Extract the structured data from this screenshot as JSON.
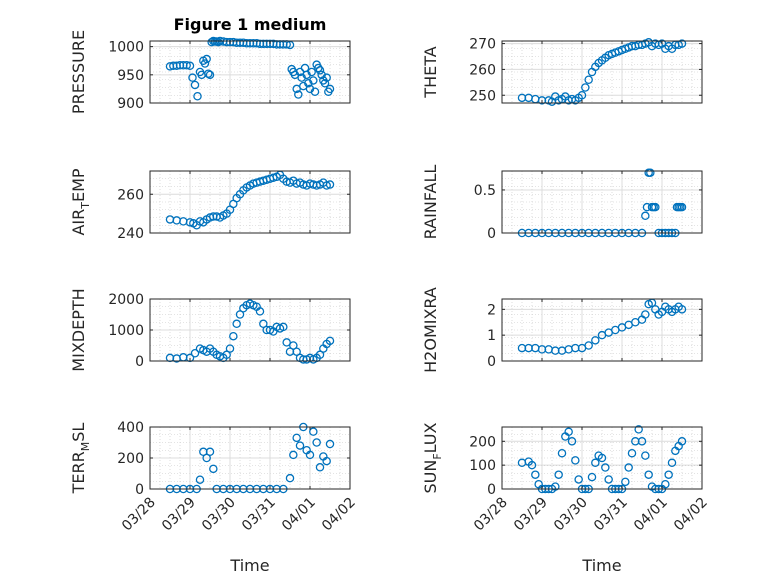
{
  "figure": {
    "title": "Figure 1 medium",
    "marker_color": "#0072BD",
    "background": "#ffffff"
  },
  "chart_data": [
    {
      "type": "scatter",
      "ylabel": "PRESSURE",
      "ylim": [
        900,
        1010
      ],
      "yticks": [
        900,
        950,
        1000
      ],
      "ytick_labels": [
        "900",
        "950",
        "1000"
      ],
      "xlim": [
        "03/28",
        "04/02"
      ],
      "xticks": [
        "03/28",
        "03/29",
        "03/30",
        "03/31",
        "04/01",
        "04/02"
      ],
      "xtick_labels": [],
      "xlabel": "",
      "grid": true,
      "x": [
        "03/28 12:00",
        "03/28 14:00",
        "03/28 16:00",
        "03/28 18:00",
        "03/28 20:00",
        "03/28 22:00",
        "03/29 00:00",
        "03/29 01:30",
        "03/29 03:00",
        "03/29 04:30",
        "03/29 06:00",
        "03/29 07:00",
        "03/29 08:00",
        "03/29 09:00",
        "03/29 10:00",
        "03/29 11:00",
        "03/29 12:00",
        "03/29 13:00",
        "03/29 14:00",
        "03/29 15:00",
        "03/29 16:00",
        "03/29 17:00",
        "03/29 18:00",
        "03/29 20:00",
        "03/29 22:00",
        "03/30 00:00",
        "03/30 02:00",
        "03/30 04:00",
        "03/30 06:00",
        "03/30 08:00",
        "03/30 10:00",
        "03/30 12:00",
        "03/30 14:00",
        "03/30 16:00",
        "03/30 18:00",
        "03/30 20:00",
        "03/30 22:00",
        "03/31 00:00",
        "03/31 02:00",
        "03/31 04:00",
        "03/31 06:00",
        "03/31 08:00",
        "03/31 10:00",
        "03/31 12:00",
        "03/31 13:00",
        "03/31 14:00",
        "03/31 15:00",
        "03/31 16:00",
        "03/31 17:00",
        "03/31 18:00",
        "03/31 19:00",
        "03/31 20:00",
        "03/31 21:00",
        "03/31 22:00",
        "03/31 23:00",
        "04/01 00:00",
        "04/01 01:00",
        "04/01 02:00",
        "04/01 03:00",
        "04/01 04:00",
        "04/01 05:00",
        "04/01 06:00",
        "04/01 07:00",
        "04/01 08:00",
        "04/01 09:00",
        "04/01 10:00",
        "04/01 11:00",
        "04/01 12:00"
      ],
      "y": [
        965,
        966,
        966,
        967,
        967,
        967,
        966,
        945,
        932,
        912,
        955,
        950,
        975,
        970,
        978,
        952,
        950,
        1008,
        1010,
        1009,
        1009,
        1008,
        1010,
        1009,
        1008,
        1008,
        1008,
        1007,
        1007,
        1007,
        1006,
        1006,
        1006,
        1006,
        1005,
        1005,
        1005,
        1005,
        1005,
        1004,
        1004,
        1004,
        1004,
        1003,
        960,
        955,
        950,
        925,
        915,
        955,
        945,
        930,
        962,
        950,
        935,
        925,
        955,
        940,
        920,
        968,
        962,
        958,
        950,
        940,
        935,
        945,
        920,
        925
      ]
    },
    {
      "type": "scatter",
      "ylabel": "THETA",
      "ylim": [
        247,
        271
      ],
      "yticks": [
        250,
        260,
        270
      ],
      "ytick_labels": [
        "250",
        "260",
        "270"
      ],
      "xlim": [
        "03/28",
        "04/02"
      ],
      "xticks": [
        "03/28",
        "03/29",
        "03/30",
        "03/31",
        "04/01",
        "04/02"
      ],
      "xtick_labels": [],
      "xlabel": "",
      "grid": true,
      "x": [
        "03/28 12:00",
        "03/28 16:00",
        "03/28 20:00",
        "03/29 00:00",
        "03/29 04:00",
        "03/29 06:00",
        "03/29 08:00",
        "03/29 10:00",
        "03/29 12:00",
        "03/29 14:00",
        "03/29 16:00",
        "03/29 18:00",
        "03/29 20:00",
        "03/29 22:00",
        "03/30 00:00",
        "03/30 02:00",
        "03/30 04:00",
        "03/30 06:00",
        "03/30 08:00",
        "03/30 10:00",
        "03/30 12:00",
        "03/30 14:00",
        "03/30 16:00",
        "03/30 18:00",
        "03/30 20:00",
        "03/30 22:00",
        "03/31 00:00",
        "03/31 02:00",
        "03/31 04:00",
        "03/31 06:00",
        "03/31 08:00",
        "03/31 10:00",
        "03/31 12:00",
        "03/31 14:00",
        "03/31 16:00",
        "03/31 18:00",
        "03/31 20:00",
        "03/31 22:00",
        "04/01 00:00",
        "04/01 02:00",
        "04/01 04:00",
        "04/01 06:00",
        "04/01 08:00",
        "04/01 10:00",
        "04/01 12:00"
      ],
      "y": [
        249,
        249,
        248.5,
        248,
        248,
        247.5,
        249.5,
        248,
        248.5,
        249.5,
        248,
        248.5,
        248,
        249,
        250,
        253,
        256,
        259,
        261,
        262.5,
        263.5,
        264.5,
        265.5,
        266,
        266.5,
        267,
        267.5,
        268,
        268.5,
        269,
        269,
        269.5,
        269.5,
        270,
        270.5,
        269,
        270,
        269.5,
        270,
        268,
        269,
        268,
        269.5,
        269.5,
        270
      ]
    },
    {
      "type": "scatter",
      "ylabel": "AIR_TEMP",
      "ylabel_main": "AIR",
      "ylabel_sub": "T",
      "ylabel_tail": "EMP",
      "ylim": [
        240,
        272
      ],
      "yticks": [
        240,
        260
      ],
      "ytick_labels": [
        "240",
        "260"
      ],
      "xlim": [
        "03/28",
        "04/02"
      ],
      "xticks": [
        "03/28",
        "03/29",
        "03/30",
        "03/31",
        "04/01",
        "04/02"
      ],
      "xtick_labels": [],
      "xlabel": "",
      "grid": true,
      "x": [
        "03/28 12:00",
        "03/28 16:00",
        "03/28 20:00",
        "03/29 00:00",
        "03/29 02:00",
        "03/29 04:00",
        "03/29 06:00",
        "03/29 08:00",
        "03/29 10:00",
        "03/29 12:00",
        "03/29 14:00",
        "03/29 16:00",
        "03/29 18:00",
        "03/29 20:00",
        "03/29 22:00",
        "03/30 00:00",
        "03/30 02:00",
        "03/30 04:00",
        "03/30 06:00",
        "03/30 08:00",
        "03/30 10:00",
        "03/30 12:00",
        "03/30 14:00",
        "03/30 16:00",
        "03/30 18:00",
        "03/30 20:00",
        "03/30 22:00",
        "03/31 00:00",
        "03/31 02:00",
        "03/31 04:00",
        "03/31 06:00",
        "03/31 08:00",
        "03/31 10:00",
        "03/31 12:00",
        "03/31 14:00",
        "03/31 16:00",
        "03/31 18:00",
        "03/31 20:00",
        "03/31 22:00",
        "04/01 00:00",
        "04/01 02:00",
        "04/01 04:00",
        "04/01 06:00",
        "04/01 08:00",
        "04/01 10:00",
        "04/01 12:00"
      ],
      "y": [
        247,
        246.5,
        246,
        245.5,
        245,
        244,
        246,
        245.5,
        247,
        248,
        248.5,
        248.5,
        248,
        249,
        250,
        252,
        255,
        258,
        260,
        262,
        263.5,
        264.5,
        265.5,
        266,
        266.5,
        267,
        267.5,
        268,
        268.5,
        269,
        270,
        268,
        266.5,
        266,
        267,
        265.5,
        266,
        265,
        264.5,
        265.5,
        265,
        264.5,
        265,
        266,
        264.5,
        265
      ]
    },
    {
      "type": "scatter",
      "ylabel": "RAINFALL",
      "ylim": [
        0,
        0.72
      ],
      "yticks": [
        0,
        0.5
      ],
      "ytick_labels": [
        "0",
        "0.5"
      ],
      "xlim": [
        "03/28",
        "04/02"
      ],
      "xticks": [
        "03/28",
        "03/29",
        "03/30",
        "03/31",
        "04/01",
        "04/02"
      ],
      "xtick_labels": [],
      "xlabel": "",
      "grid": true,
      "x": [
        "03/28 12:00",
        "03/28 16:00",
        "03/28 20:00",
        "03/29 00:00",
        "03/29 04:00",
        "03/29 08:00",
        "03/29 12:00",
        "03/29 16:00",
        "03/29 20:00",
        "03/30 00:00",
        "03/30 04:00",
        "03/30 08:00",
        "03/30 12:00",
        "03/30 16:00",
        "03/30 20:00",
        "03/31 00:00",
        "03/31 04:00",
        "03/31 08:00",
        "03/31 12:00",
        "03/31 14:00",
        "03/31 15:00",
        "03/31 16:00",
        "03/31 17:00",
        "03/31 18:00",
        "03/31 19:00",
        "03/31 20:00",
        "03/31 22:00",
        "04/01 00:00",
        "04/01 02:00",
        "04/01 04:00",
        "04/01 06:00",
        "04/01 08:00",
        "04/01 09:00",
        "04/01 10:00",
        "04/01 11:00",
        "04/01 12:00"
      ],
      "y": [
        0,
        0,
        0,
        0,
        0,
        0,
        0,
        0,
        0,
        0,
        0,
        0,
        0,
        0,
        0,
        0,
        0,
        0,
        0,
        0.2,
        0.3,
        0.7,
        0.7,
        0.3,
        0.3,
        0.3,
        0,
        0,
        0,
        0,
        0,
        0,
        0.3,
        0.3,
        0.3,
        0.3
      ]
    },
    {
      "type": "scatter",
      "ylabel": "MIXDEPTH",
      "ylim": [
        0,
        2000
      ],
      "yticks": [
        0,
        1000,
        2000
      ],
      "ytick_labels": [
        "0",
        "1000",
        "2000"
      ],
      "xlim": [
        "03/28",
        "04/02"
      ],
      "xticks": [
        "03/28",
        "03/29",
        "03/30",
        "03/31",
        "04/01",
        "04/02"
      ],
      "xtick_labels": [],
      "xlabel": "",
      "grid": true,
      "x": [
        "03/28 12:00",
        "03/28 16:00",
        "03/28 20:00",
        "03/29 00:00",
        "03/29 03:00",
        "03/29 06:00",
        "03/29 08:00",
        "03/29 10:00",
        "03/29 12:00",
        "03/29 14:00",
        "03/29 16:00",
        "03/29 18:00",
        "03/29 20:00",
        "03/29 22:00",
        "03/30 00:00",
        "03/30 02:00",
        "03/30 04:00",
        "03/30 06:00",
        "03/30 08:00",
        "03/30 10:00",
        "03/30 12:00",
        "03/30 14:00",
        "03/30 16:00",
        "03/30 18:00",
        "03/30 20:00",
        "03/30 22:00",
        "03/31 00:00",
        "03/31 02:00",
        "03/31 04:00",
        "03/31 06:00",
        "03/31 08:00",
        "03/31 10:00",
        "03/31 12:00",
        "03/31 14:00",
        "03/31 16:00",
        "03/31 18:00",
        "03/31 20:00",
        "03/31 22:00",
        "04/01 00:00",
        "04/01 02:00",
        "04/01 04:00",
        "04/01 06:00",
        "04/01 08:00",
        "04/01 10:00",
        "04/01 12:00"
      ],
      "y": [
        100,
        80,
        120,
        100,
        250,
        400,
        350,
        300,
        400,
        300,
        200,
        150,
        100,
        200,
        400,
        800,
        1200,
        1500,
        1700,
        1800,
        1850,
        1800,
        1750,
        1600,
        1200,
        1000,
        1000,
        950,
        1100,
        1050,
        1100,
        600,
        300,
        500,
        300,
        100,
        50,
        50,
        100,
        50,
        100,
        200,
        400,
        550,
        650
      ]
    },
    {
      "type": "scatter",
      "ylabel": "H2OMIXRA",
      "ylim": [
        0,
        2.4
      ],
      "yticks": [
        0,
        1,
        2
      ],
      "ytick_labels": [
        "0",
        "1",
        "2"
      ],
      "xlim": [
        "03/28",
        "04/02"
      ],
      "xticks": [
        "03/28",
        "03/29",
        "03/30",
        "03/31",
        "04/01",
        "04/02"
      ],
      "xtick_labels": [],
      "xlabel": "",
      "grid": true,
      "x": [
        "03/28 12:00",
        "03/28 16:00",
        "03/28 20:00",
        "03/29 00:00",
        "03/29 04:00",
        "03/29 08:00",
        "03/29 12:00",
        "03/29 16:00",
        "03/29 20:00",
        "03/30 00:00",
        "03/30 04:00",
        "03/30 08:00",
        "03/30 12:00",
        "03/30 16:00",
        "03/30 20:00",
        "03/31 00:00",
        "03/31 04:00",
        "03/31 08:00",
        "03/31 12:00",
        "03/31 14:00",
        "03/31 16:00",
        "03/31 18:00",
        "03/31 20:00",
        "03/31 22:00",
        "04/01 00:00",
        "04/01 02:00",
        "04/01 04:00",
        "04/01 06:00",
        "04/01 08:00",
        "04/01 10:00",
        "04/01 12:00"
      ],
      "y": [
        0.5,
        0.5,
        0.5,
        0.45,
        0.45,
        0.4,
        0.4,
        0.45,
        0.5,
        0.5,
        0.6,
        0.8,
        1.0,
        1.1,
        1.2,
        1.3,
        1.4,
        1.5,
        1.6,
        1.8,
        2.2,
        2.25,
        2.0,
        1.8,
        1.9,
        2.1,
        2.0,
        1.9,
        2.0,
        2.1,
        2.0
      ]
    },
    {
      "type": "scatter",
      "ylabel": "TERR_MSL",
      "ylabel_main": "TERR",
      "ylabel_sub": "M",
      "ylabel_tail": "SL",
      "ylim": [
        0,
        400
      ],
      "yticks": [
        0,
        200,
        400
      ],
      "ytick_labels": [
        "0",
        "200",
        "400"
      ],
      "xlim": [
        "03/28",
        "04/02"
      ],
      "xticks": [
        "03/28",
        "03/29",
        "03/30",
        "03/31",
        "04/01",
        "04/02"
      ],
      "xtick_labels": [
        "03/28",
        "03/29",
        "03/30",
        "03/31",
        "04/01",
        "04/02"
      ],
      "xlabel": "Time",
      "grid": true,
      "x": [
        "03/28 12:00",
        "03/28 16:00",
        "03/28 20:00",
        "03/29 00:00",
        "03/29 04:00",
        "03/29 06:00",
        "03/29 08:00",
        "03/29 10:00",
        "03/29 12:00",
        "03/29 14:00",
        "03/29 16:00",
        "03/29 20:00",
        "03/30 00:00",
        "03/30 04:00",
        "03/30 08:00",
        "03/30 12:00",
        "03/30 16:00",
        "03/30 20:00",
        "03/31 00:00",
        "03/31 04:00",
        "03/31 08:00",
        "03/31 12:00",
        "03/31 14:00",
        "03/31 16:00",
        "03/31 18:00",
        "03/31 20:00",
        "03/31 22:00",
        "04/01 00:00",
        "04/01 02:00",
        "04/01 04:00",
        "04/01 06:00",
        "04/01 08:00",
        "04/01 10:00",
        "04/01 12:00"
      ],
      "y": [
        0,
        0,
        0,
        0,
        0,
        60,
        240,
        200,
        240,
        130,
        0,
        0,
        0,
        0,
        0,
        0,
        0,
        0,
        0,
        0,
        0,
        70,
        220,
        330,
        280,
        400,
        250,
        220,
        370,
        300,
        140,
        210,
        180,
        290
      ]
    },
    {
      "type": "scatter",
      "ylabel": "SUN_FLUX",
      "ylabel_main": "SUN",
      "ylabel_sub": "F",
      "ylabel_tail": "LUX",
      "ylim": [
        0,
        260
      ],
      "yticks": [
        0,
        100,
        200
      ],
      "ytick_labels": [
        "0",
        "100",
        "200"
      ],
      "xlim": [
        "03/28",
        "04/02"
      ],
      "xticks": [
        "03/28",
        "03/29",
        "03/30",
        "03/31",
        "04/01",
        "04/02"
      ],
      "xtick_labels": [
        "03/28",
        "03/29",
        "03/30",
        "03/31",
        "04/01",
        "04/02"
      ],
      "xlabel": "Time",
      "grid": true,
      "x": [
        "03/28 12:00",
        "03/28 16:00",
        "03/28 18:00",
        "03/28 20:00",
        "03/28 22:00",
        "03/29 00:00",
        "03/29 02:00",
        "03/29 04:00",
        "03/29 06:00",
        "03/29 08:00",
        "03/29 10:00",
        "03/29 12:00",
        "03/29 14:00",
        "03/29 16:00",
        "03/29 18:00",
        "03/29 20:00",
        "03/29 22:00",
        "03/30 00:00",
        "03/30 02:00",
        "03/30 04:00",
        "03/30 06:00",
        "03/30 08:00",
        "03/30 10:00",
        "03/30 12:00",
        "03/30 14:00",
        "03/30 16:00",
        "03/30 18:00",
        "03/30 20:00",
        "03/30 22:00",
        "03/31 00:00",
        "03/31 02:00",
        "03/31 04:00",
        "03/31 06:00",
        "03/31 08:00",
        "03/31 10:00",
        "03/31 12:00",
        "03/31 14:00",
        "03/31 16:00",
        "03/31 18:00",
        "03/31 20:00",
        "03/31 22:00",
        "04/01 00:00",
        "04/01 02:00",
        "04/01 04:00",
        "04/01 06:00",
        "04/01 08:00",
        "04/01 10:00",
        "04/01 12:00"
      ],
      "y": [
        110,
        115,
        100,
        60,
        20,
        0,
        0,
        0,
        0,
        10,
        60,
        150,
        220,
        240,
        200,
        120,
        40,
        0,
        0,
        0,
        50,
        110,
        140,
        130,
        90,
        40,
        0,
        0,
        0,
        0,
        30,
        90,
        150,
        200,
        250,
        200,
        140,
        60,
        10,
        0,
        0,
        0,
        20,
        60,
        110,
        160,
        180,
        200
      ]
    }
  ]
}
